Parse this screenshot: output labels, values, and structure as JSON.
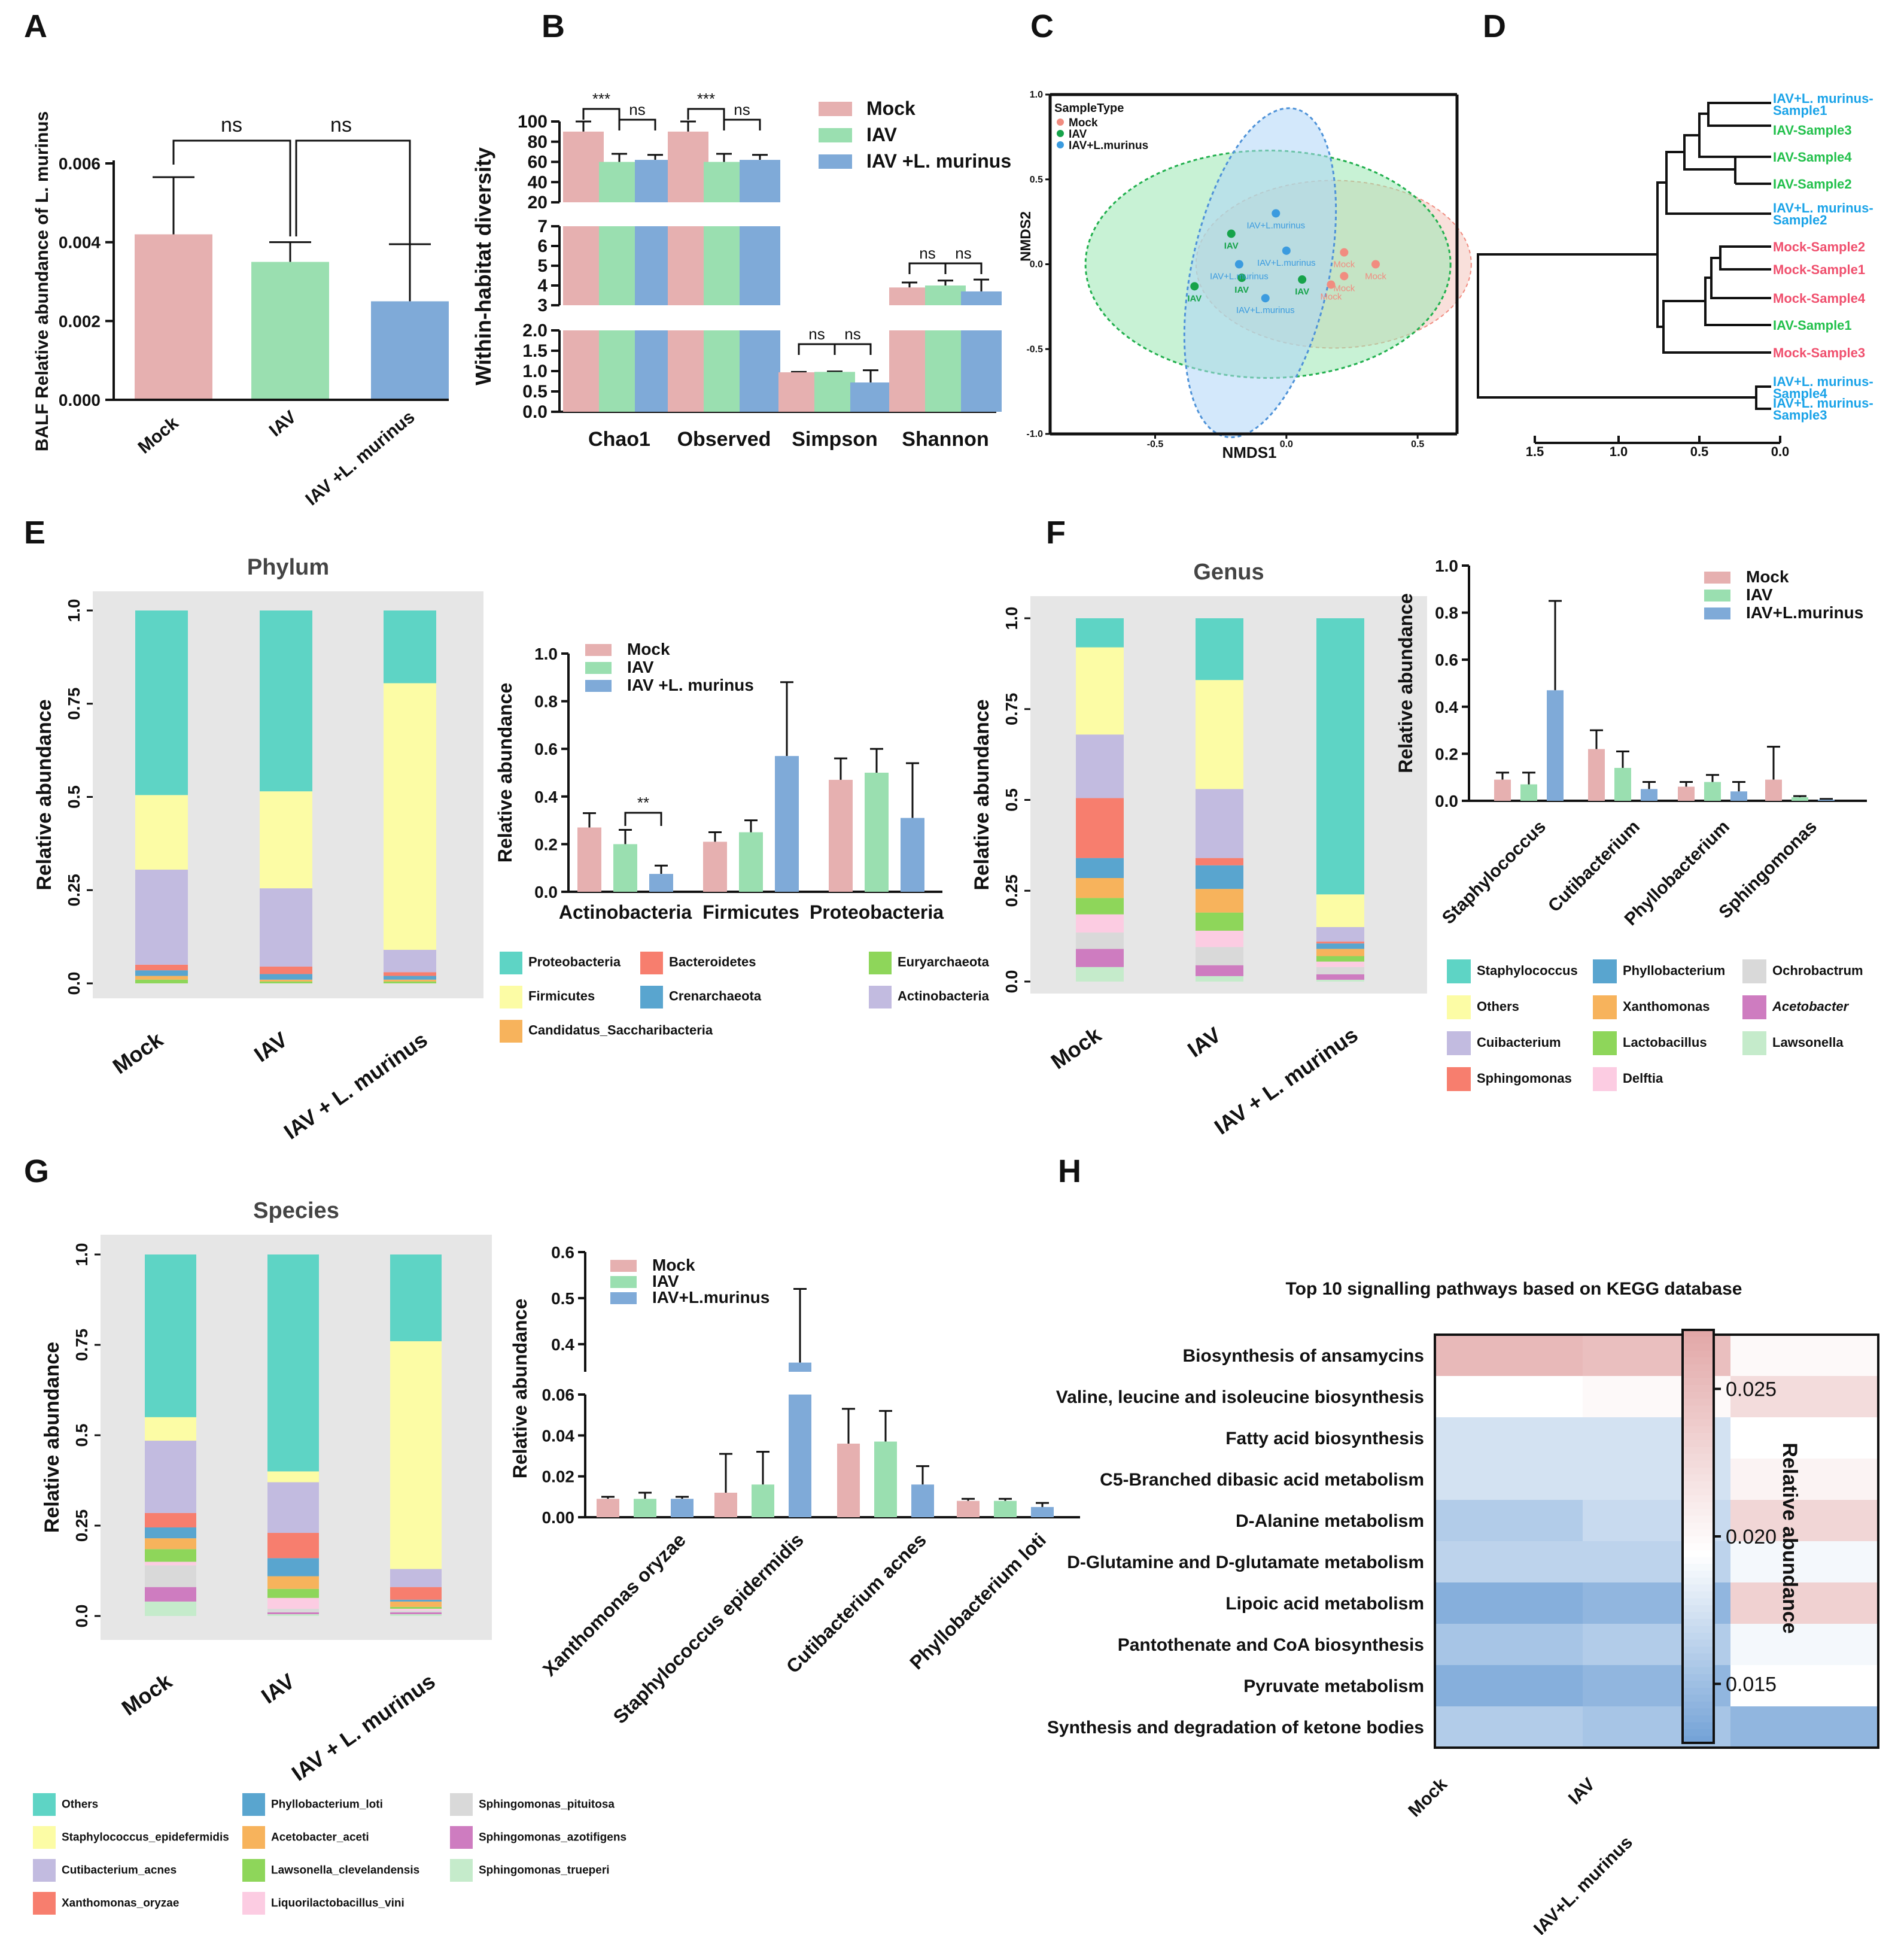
{
  "colors": {
    "mock": "#E6B0B0",
    "iav": "#9ADFB0",
    "lm": "#7FAAD8",
    "ellipse_mock": "#F4C6BE",
    "ellipse_iav": "#9BE8B3",
    "ellipse_lm": "#AFD6F8",
    "dend_blue": "#1AA3E8",
    "dend_green": "#22C04B",
    "dend_red": "#F0506E",
    "panel_bg": "#E6E6E6"
  },
  "chart_data": [
    {
      "panel": "A",
      "type": "bar",
      "categories": [
        "Mock",
        "IAV",
        "IAV +L. murinus"
      ],
      "values": [
        0.0042,
        0.0035,
        0.0025
      ],
      "errors": [
        0.00145,
        0.0005,
        0.00145
      ],
      "ylabel": "BALF Relative abundance  of L. murinus",
      "ylim": [
        0,
        0.006
      ],
      "yticks": [
        "0.000",
        "0.002",
        "0.004",
        "0.006"
      ],
      "significance": [
        "ns",
        "ns"
      ]
    },
    {
      "panel": "B",
      "type": "bar",
      "categories": [
        "Chao1",
        "Observed",
        "Simpson",
        "Shannon"
      ],
      "series": [
        {
          "name": "Mock",
          "values": [
            90,
            90,
            0.97,
            3.9
          ],
          "errors": [
            12,
            10,
            0.01,
            0.25
          ]
        },
        {
          "name": "IAV",
          "values": [
            60,
            60,
            0.98,
            4.0
          ],
          "errors": [
            8,
            8,
            0.01,
            0.25
          ]
        },
        {
          "name": "IAV +L. murinus",
          "values": [
            62,
            62,
            0.72,
            3.7
          ],
          "errors": [
            5,
            5,
            0.3,
            0.6
          ]
        }
      ],
      "ylabel": "Within-habitat diversity",
      "ylim": [
        0,
        100
      ],
      "axis_breaks": [
        [
          2,
          3
        ],
        [
          7,
          20
        ]
      ],
      "yticks_top": [
        "20",
        "40",
        "60",
        "80",
        "100"
      ],
      "yticks_mid": [
        "3",
        "4",
        "5",
        "6",
        "7"
      ],
      "yticks_low": [
        "0.0",
        "0.5",
        "1.0",
        "1.5",
        "2.0"
      ],
      "significance": [
        "***",
        "ns",
        "***",
        "ns",
        "ns",
        "ns",
        "ns",
        "ns"
      ],
      "legend": [
        "Mock",
        "IAV",
        "IAV +L. murinus"
      ]
    },
    {
      "panel": "C",
      "type": "scatter",
      "xlabel": "NMDS1",
      "ylabel": "NMDS2",
      "xlim": [
        -0.9,
        0.65
      ],
      "ylim": [
        -1.0,
        1.0
      ],
      "xticks": [
        "-0.5",
        "0.0",
        "0.5"
      ],
      "yticks": [
        "1.0",
        "0.5",
        "0.0",
        "-0.5",
        "-1.0"
      ],
      "legend_title": "SampleType",
      "legend": [
        "Mock",
        "IAV",
        "IAV+L.murinus"
      ],
      "points": [
        {
          "group": "Mock",
          "label": "Mock",
          "x": 0.22,
          "y": 0.07
        },
        {
          "group": "Mock",
          "label": "Mock",
          "x": 0.34,
          "y": 0.0
        },
        {
          "group": "Mock",
          "label": "Mock",
          "x": 0.22,
          "y": -0.07
        },
        {
          "group": "Mock",
          "label": "Mock",
          "x": 0.17,
          "y": -0.12
        },
        {
          "group": "IAV",
          "label": "IAV",
          "x": -0.21,
          "y": 0.18
        },
        {
          "group": "IAV",
          "label": "IAV",
          "x": -0.17,
          "y": -0.08
        },
        {
          "group": "IAV",
          "label": "IAV",
          "x": -0.35,
          "y": -0.13
        },
        {
          "group": "IAV",
          "label": "IAV",
          "x": 0.06,
          "y": -0.09
        },
        {
          "group": "IAV+L.murinus",
          "label": "IAV+L.murinus",
          "x": -0.04,
          "y": 0.3
        },
        {
          "group": "IAV+L.murinus",
          "label": "IAV+L.murinus",
          "x": -0.18,
          "y": 0.0
        },
        {
          "group": "IAV+L.murinus",
          "label": "IAV+L.murinus",
          "x": 0.0,
          "y": 0.08
        },
        {
          "group": "IAV+L.murinus",
          "label": "IAV+L.murinus",
          "x": -0.08,
          "y": -0.2
        }
      ]
    },
    {
      "panel": "D",
      "type": "dendrogram",
      "xticks": [
        "1.5",
        "1.0",
        "0.5",
        "0.0"
      ],
      "leaves": [
        {
          "label_lines": [
            "IAV+L. murinus-",
            "Sample1"
          ],
          "group": "lm"
        },
        {
          "label_lines": [
            "IAV-Sample3"
          ],
          "group": "iav"
        },
        {
          "label_lines": [
            "IAV-Sample4"
          ],
          "group": "iav"
        },
        {
          "label_lines": [
            "IAV-Sample2"
          ],
          "group": "iav"
        },
        {
          "label_lines": [
            "IAV+L. murinus-",
            "Sample2"
          ],
          "group": "lm"
        },
        {
          "label_lines": [
            "Mock-Sample2"
          ],
          "group": "mock"
        },
        {
          "label_lines": [
            "Mock-Sample1"
          ],
          "group": "mock"
        },
        {
          "label_lines": [
            "Mock-Sample4"
          ],
          "group": "mock"
        },
        {
          "label_lines": [
            "IAV-Sample1"
          ],
          "group": "iav"
        },
        {
          "label_lines": [
            "Mock-Sample3"
          ],
          "group": "mock"
        },
        {
          "label_lines": [
            "IAV+L. murinus-",
            "Sample4"
          ],
          "group": "lm"
        },
        {
          "label_lines": [
            "IAV+L. murinus-",
            "Sample3"
          ],
          "group": "lm"
        }
      ]
    },
    {
      "panel": "E",
      "type": "stacked_bar",
      "title": "Phylum",
      "ylabel": "Relative abundance",
      "categories": [
        "Mock",
        "IAV",
        "IAV + L. murinus"
      ],
      "yticks": [
        "0.0",
        "0.25",
        "0.5",
        "0.75",
        "1.0"
      ],
      "series": [
        {
          "name": "Euryarchaeota",
          "color": "#8ED65A",
          "values": [
            0.01,
            0.005,
            0.005
          ]
        },
        {
          "name": "Candidatus_Saccharibacteria",
          "color": "#F7B35C",
          "values": [
            0.01,
            0.005,
            0.005
          ]
        },
        {
          "name": "Crenarchaeota",
          "color": "#59A5CF",
          "values": [
            0.015,
            0.015,
            0.01
          ]
        },
        {
          "name": "Bacteroidetes",
          "color": "#F77E6E",
          "values": [
            0.015,
            0.02,
            0.01
          ]
        },
        {
          "name": "Actinobacteria",
          "color": "#C2BBE0",
          "values": [
            0.255,
            0.21,
            0.06
          ]
        },
        {
          "name": "Firmicutes",
          "color": "#FCFCA5",
          "values": [
            0.2,
            0.26,
            0.715
          ]
        },
        {
          "name": "Proteobacteria",
          "color": "#5ED4C5",
          "values": [
            0.495,
            0.485,
            0.195
          ]
        }
      ],
      "legend": [
        "Proteobacteria",
        "Bacteroidetes",
        "Euryarchaeota",
        "Firmicutes",
        "Crenarchaeota",
        "Actinobacteria",
        "Candidatus_Saccharibacteria"
      ]
    },
    {
      "panel": "E-inset",
      "type": "bar",
      "ylabel": "Relative abundance",
      "categories": [
        "Actinobacteria",
        "Firmicutes",
        "Proteobacteria"
      ],
      "ylim": [
        0,
        1.0
      ],
      "yticks": [
        "0.0",
        "0.2",
        "0.4",
        "0.6",
        "0.8",
        "1.0"
      ],
      "series": [
        {
          "name": "Mock",
          "values": [
            0.27,
            0.21,
            0.47
          ],
          "errors": [
            0.06,
            0.04,
            0.09
          ]
        },
        {
          "name": "IAV",
          "values": [
            0.2,
            0.25,
            0.5
          ],
          "errors": [
            0.06,
            0.05,
            0.1
          ]
        },
        {
          "name": "IAV +L. murinus",
          "values": [
            0.075,
            0.57,
            0.31
          ],
          "errors": [
            0.035,
            0.31,
            0.23
          ]
        }
      ],
      "significance": [
        "**"
      ],
      "legend": [
        "Mock",
        "IAV",
        "IAV +L. murinus"
      ]
    },
    {
      "panel": "F",
      "type": "stacked_bar",
      "title": "Genus",
      "ylabel": "Relative abundance",
      "categories": [
        "Mock",
        "IAV",
        "IAV + L. murinus"
      ],
      "yticks": [
        "0.0",
        "0.25",
        "0.5",
        "0.75",
        "1.0"
      ],
      "series": [
        {
          "name": "Lawsonella",
          "color": "#C5EBCB",
          "values": [
            0.04,
            0.015,
            0.005
          ]
        },
        {
          "name": "Acetobacter",
          "color": "#CE7CC0",
          "values": [
            0.05,
            0.03,
            0.015
          ]
        },
        {
          "name": "Ochrobactrum",
          "color": "#D9D9D9",
          "values": [
            0.045,
            0.05,
            0.02
          ]
        },
        {
          "name": "Delftia",
          "color": "#FCCCE2",
          "values": [
            0.05,
            0.045,
            0.015
          ]
        },
        {
          "name": "Lactobacillus",
          "color": "#8ED65A",
          "values": [
            0.045,
            0.05,
            0.015
          ]
        },
        {
          "name": "Xanthomonas",
          "color": "#F7B35C",
          "values": [
            0.055,
            0.065,
            0.02
          ]
        },
        {
          "name": "Phyllobacterium",
          "color": "#59A5CF",
          "values": [
            0.055,
            0.065,
            0.015
          ]
        },
        {
          "name": "Sphingomonas",
          "color": "#F77E6E",
          "values": [
            0.165,
            0.02,
            0.005
          ]
        },
        {
          "name": "Cuibacterium",
          "color": "#C2BBE0",
          "values": [
            0.175,
            0.19,
            0.04
          ]
        },
        {
          "name": "Others",
          "color": "#FCFCA5",
          "values": [
            0.24,
            0.3,
            0.09
          ]
        },
        {
          "name": "Staphylococcus",
          "color": "#5ED4C5",
          "values": [
            0.08,
            0.17,
            0.76
          ]
        }
      ],
      "legend": [
        "Staphylococcus",
        "Phyllobacterium",
        "Ochrobactrum",
        "Others",
        "Xanthomonas",
        "Acetobacter",
        "Cuibacterium",
        "Lactobacillus",
        "Lawsonella",
        "Sphingomonas",
        "Delftia"
      ]
    },
    {
      "panel": "F-inset",
      "type": "bar",
      "ylabel": "Relative abundance",
      "categories": [
        "Staphylococcus",
        "Cutibacterium",
        "Phyllobacterium",
        "Sphingomonas"
      ],
      "ylim": [
        0,
        1.0
      ],
      "yticks": [
        "0.0",
        "0.2",
        "0.4",
        "0.6",
        "0.8",
        "1.0"
      ],
      "series": [
        {
          "name": "Mock",
          "values": [
            0.09,
            0.22,
            0.06,
            0.09
          ],
          "errors": [
            0.03,
            0.08,
            0.02,
            0.14
          ]
        },
        {
          "name": "IAV",
          "values": [
            0.07,
            0.14,
            0.08,
            0.015
          ],
          "errors": [
            0.05,
            0.07,
            0.03,
            0.005
          ]
        },
        {
          "name": "IAV+L.murinus",
          "values": [
            0.47,
            0.05,
            0.04,
            0.005
          ],
          "errors": [
            0.38,
            0.03,
            0.04,
            0.003
          ]
        }
      ],
      "legend": [
        "Mock",
        "IAV",
        "IAV+L.murinus"
      ]
    },
    {
      "panel": "G",
      "type": "stacked_bar",
      "title": "Species",
      "ylabel": "Relative abundance",
      "categories": [
        "Mock",
        "IAV",
        "IAV + L. murinus"
      ],
      "yticks": [
        "0.0",
        "0.25",
        "0.5",
        "0.75",
        "1.0"
      ],
      "series": [
        {
          "name": "Sphingomonas_trueperi",
          "color": "#C5EBCB",
          "values": [
            0.04,
            0.005,
            0.005
          ]
        },
        {
          "name": "Sphingomonas_azotifigens",
          "color": "#CE7CC0",
          "values": [
            0.04,
            0.005,
            0.005
          ]
        },
        {
          "name": "Sphingomonas_pituitosa",
          "color": "#D9D9D9",
          "values": [
            0.06,
            0.01,
            0.005
          ]
        },
        {
          "name": "Liquorilactobacillus_vini",
          "color": "#FCCCE2",
          "values": [
            0.01,
            0.03,
            0.005
          ]
        },
        {
          "name": "Lawsonella_clevelandensis",
          "color": "#8ED65A",
          "values": [
            0.035,
            0.025,
            0.005
          ]
        },
        {
          "name": "Acetobacter_aceti",
          "color": "#F7B35C",
          "values": [
            0.03,
            0.035,
            0.015
          ]
        },
        {
          "name": "Phyllobacterium_loti",
          "color": "#59A5CF",
          "values": [
            0.03,
            0.05,
            0.005
          ]
        },
        {
          "name": "Xanthomonas_oryzae",
          "color": "#F77E6E",
          "values": [
            0.04,
            0.07,
            0.035
          ]
        },
        {
          "name": "Cutibacterium_acnes",
          "color": "#C2BBE0",
          "values": [
            0.2,
            0.14,
            0.05
          ]
        },
        {
          "name": "Staphylococcus_epidefermidis",
          "color": "#FCFCA5",
          "values": [
            0.065,
            0.03,
            0.63
          ]
        },
        {
          "name": "Others",
          "color": "#5ED4C5",
          "values": [
            0.45,
            0.6,
            0.24
          ]
        }
      ],
      "legend": [
        "Others",
        "Phyllobacterium_loti",
        "Sphingomonas_pituitosa",
        "Staphylococcus_epidefermidis",
        "Acetobacter_aceti",
        "Sphingomonas_azotifigens",
        "Cutibacterium_acnes",
        "Lawsonella_clevelandensis",
        "Sphingomonas_trueperi",
        "Xanthomonas_oryzae",
        "Liquorilactobacillus_vini"
      ]
    },
    {
      "panel": "G-inset",
      "type": "bar",
      "ylabel": "Relative abundance",
      "categories": [
        "Xanthomonas oryzae",
        "Staphylococcus epidermidis",
        "Cutibacterium acnes",
        "Phyllobacterium loti"
      ],
      "axis_break": [
        0.06,
        0.3
      ],
      "yticks_low": [
        "0.00",
        "0.02",
        "0.04",
        "0.06"
      ],
      "yticks_high": [
        "0.4",
        "0.5",
        "0.6"
      ],
      "series": [
        {
          "name": "Mock",
          "values": [
            0.009,
            0.012,
            0.036,
            0.008
          ],
          "errors": [
            0.001,
            0.019,
            0.017,
            0.001
          ]
        },
        {
          "name": "IAV",
          "values": [
            0.009,
            0.016,
            0.037,
            0.008
          ],
          "errors": [
            0.003,
            0.016,
            0.015,
            0.001
          ]
        },
        {
          "name": "IAV+L.murinus",
          "values": [
            0.009,
            0.36,
            0.016,
            0.005
          ],
          "errors": [
            0.001,
            0.16,
            0.009,
            0.002
          ]
        }
      ],
      "legend": [
        "Mock",
        "IAV",
        "IAV+L.murinus"
      ]
    },
    {
      "panel": "H",
      "type": "heatmap",
      "title": "Top 10 signalling pathways based on KEGG database",
      "columns": [
        "Mock",
        "IAV",
        "IAV+L. murinus"
      ],
      "rows": [
        "Biosynthesis of ansamycins",
        "Valine, leucine and isoleucine biosynthesis",
        "Fatty acid biosynthesis",
        "C5-Branched dibasic acid metabolism",
        "D-Alanine metabolism",
        "D-Glutamine and D-glutamate metabolism",
        "Lipoic acid metabolism",
        "Pantothenate and CoA biosynthesis",
        "Pyruvate metabolism",
        "Synthesis and degradation of ketone bodies"
      ],
      "values": [
        [
          0.0255,
          0.025,
          0.02
        ],
        [
          0.0195,
          0.02,
          0.0225
        ],
        [
          0.0175,
          0.0175,
          0.0195
        ],
        [
          0.0175,
          0.0175,
          0.0205
        ],
        [
          0.016,
          0.017,
          0.023
        ],
        [
          0.0165,
          0.0165,
          0.019
        ],
        [
          0.014,
          0.0145,
          0.0235
        ],
        [
          0.0155,
          0.016,
          0.019
        ],
        [
          0.014,
          0.0145,
          0.0195
        ],
        [
          0.016,
          0.0155,
          0.0145
        ]
      ],
      "colorbar_label": "Relative abundance",
      "colorbar_ticks": [
        "0.025",
        "0.020",
        "0.015"
      ],
      "vmin": 0.013,
      "vmax": 0.027
    }
  ],
  "panel_letters": [
    "A",
    "B",
    "C",
    "D",
    "E",
    "F",
    "G",
    "H"
  ]
}
